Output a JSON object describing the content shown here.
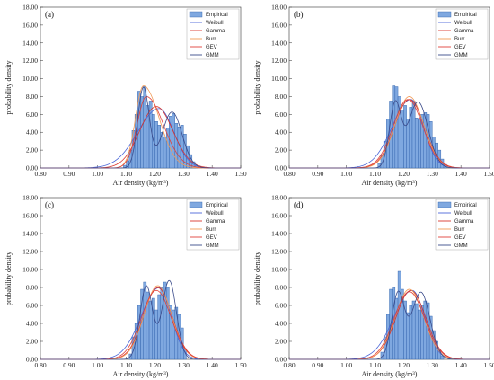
{
  "legend_entries": [
    "Empirical",
    "Weibull",
    "Gamma",
    "Burr",
    "GEV",
    "GMM"
  ],
  "colors": {
    "Empirical_fill": "#7fa8e0",
    "Empirical_edge": "#2a5ca8",
    "Weibull": "#4a66d8",
    "Gamma": "#d9342b",
    "Burr": "#f29a55",
    "GEV": "#e0403a",
    "GMM": "#3a4a8a"
  },
  "chart_data": [
    {
      "type": "bar",
      "panel_label": "(a)",
      "xlabel": "Air density  (kg/m³)",
      "ylabel": "probability density",
      "xlim": [
        0.8,
        1.5
      ],
      "ylim": [
        0,
        18
      ],
      "xticks": [
        "0.80",
        "0.90",
        "1.00",
        "1.10",
        "1.20",
        "1.30",
        "1.40",
        "1.50"
      ],
      "yticks": [
        "0.00",
        "2.00",
        "4.00",
        "6.00",
        "8.00",
        "10.00",
        "12.00",
        "14.00",
        "16.00",
        "18.00"
      ],
      "bin_width": 0.01,
      "bin_starts": [
        1.09,
        1.1,
        1.11,
        1.12,
        1.13,
        1.14,
        1.15,
        1.16,
        1.17,
        1.18,
        1.19,
        1.2,
        1.21,
        1.22,
        1.23,
        1.24,
        1.25,
        1.26,
        1.27,
        1.28,
        1.29,
        1.3,
        1.31,
        1.32,
        1.33,
        1.34
      ],
      "values": [
        0.3,
        0.8,
        2.0,
        4.2,
        6.0,
        8.6,
        8.0,
        9.1,
        7.0,
        7.5,
        6.0,
        5.2,
        4.8,
        4.0,
        3.5,
        4.5,
        5.8,
        6.1,
        5.0,
        4.6,
        4.8,
        3.8,
        2.5,
        1.5,
        0.7,
        0.3
      ],
      "fits": [
        {
          "name": "Weibull",
          "type": "weibull",
          "mean": 1.215,
          "sd": 0.06,
          "shape": -0.5
        },
        {
          "name": "Gamma",
          "type": "normal",
          "mean": 1.205,
          "sd": 0.058
        },
        {
          "name": "Burr",
          "type": "skewed",
          "peak": 1.16,
          "sdL": 0.028,
          "sdR": 0.055,
          "height": 9.2
        },
        {
          "name": "GEV",
          "type": "skewed",
          "peak": 1.17,
          "sdL": 0.032,
          "sdR": 0.06,
          "height": 8.0
        },
        {
          "name": "GMM",
          "type": "mixture",
          "components": [
            [
              0.45,
              1.16,
              0.02
            ],
            [
              0.55,
              1.26,
              0.035
            ]
          ]
        }
      ]
    },
    {
      "type": "bar",
      "panel_label": "(b)",
      "xlabel": "Air density  (kg/m³)",
      "ylabel": "probability density",
      "xlim": [
        0.8,
        1.5
      ],
      "ylim": [
        0,
        18
      ],
      "xticks": [
        "0.80",
        "0.90",
        "1.00",
        "1.10",
        "1.20",
        "1.30",
        "1.40",
        "1.50"
      ],
      "yticks": [
        "0.00",
        "2.00",
        "4.00",
        "6.00",
        "8.00",
        "10.00",
        "12.00",
        "14.00",
        "16.00",
        "18.00"
      ],
      "bin_width": 0.01,
      "bin_starts": [
        1.11,
        1.12,
        1.13,
        1.14,
        1.15,
        1.16,
        1.17,
        1.18,
        1.19,
        1.2,
        1.21,
        1.22,
        1.23,
        1.24,
        1.25,
        1.26,
        1.27,
        1.28,
        1.29,
        1.3,
        1.31,
        1.32,
        1.33,
        1.34
      ],
      "values": [
        0.5,
        1.5,
        3.0,
        5.5,
        7.5,
        9.2,
        9.1,
        8.0,
        6.5,
        7.0,
        5.5,
        6.8,
        7.5,
        5.6,
        5.5,
        6.0,
        6.2,
        6.0,
        5.2,
        3.5,
        2.8,
        2.0,
        1.0,
        0.4
      ],
      "fits": [
        {
          "name": "Weibull",
          "type": "weibull",
          "mean": 1.225,
          "sd": 0.052,
          "shape": -0.5
        },
        {
          "name": "Gamma",
          "type": "normal",
          "mean": 1.22,
          "sd": 0.052
        },
        {
          "name": "Burr",
          "type": "normal",
          "mean": 1.22,
          "sd": 0.05,
          "height": 8.0
        },
        {
          "name": "GEV",
          "type": "normal",
          "mean": 1.215,
          "sd": 0.052
        },
        {
          "name": "GMM",
          "type": "mixture",
          "components": [
            [
              0.35,
              1.17,
              0.02
            ],
            [
              0.65,
              1.25,
              0.035
            ]
          ]
        }
      ]
    },
    {
      "type": "bar",
      "panel_label": "(c)",
      "xlabel": "Air density  (kg/m³)",
      "ylabel": "probability density",
      "xlim": [
        0.8,
        1.5
      ],
      "ylim": [
        0,
        18
      ],
      "xticks": [
        "0.80",
        "0.90",
        "1.00",
        "1.10",
        "1.20",
        "1.30",
        "1.40",
        "1.50"
      ],
      "yticks": [
        "0.00",
        "2.00",
        "4.00",
        "6.00",
        "8.00",
        "10.00",
        "12.00",
        "14.00",
        "16.00",
        "18.00"
      ],
      "bin_width": 0.01,
      "bin_starts": [
        1.11,
        1.12,
        1.13,
        1.14,
        1.15,
        1.16,
        1.17,
        1.18,
        1.19,
        1.2,
        1.21,
        1.22,
        1.23,
        1.24,
        1.25,
        1.26,
        1.27,
        1.28,
        1.29,
        1.3
      ],
      "values": [
        0.6,
        2.5,
        4.0,
        6.0,
        7.8,
        8.6,
        7.5,
        6.5,
        6.8,
        5.5,
        7.2,
        8.0,
        8.6,
        8.0,
        6.0,
        5.5,
        5.8,
        5.0,
        3.5,
        1.2
      ],
      "fits": [
        {
          "name": "Weibull",
          "type": "weibull",
          "mean": 1.215,
          "sd": 0.05,
          "shape": -0.5
        },
        {
          "name": "Gamma",
          "type": "normal",
          "mean": 1.21,
          "sd": 0.05
        },
        {
          "name": "Burr",
          "type": "normal",
          "mean": 1.21,
          "sd": 0.048,
          "height": 8.2
        },
        {
          "name": "GEV",
          "type": "normal",
          "mean": 1.205,
          "sd": 0.052
        },
        {
          "name": "GMM",
          "type": "mixture",
          "components": [
            [
              0.45,
              1.17,
              0.022
            ],
            [
              0.55,
              1.25,
              0.025
            ]
          ]
        }
      ]
    },
    {
      "type": "bar",
      "panel_label": "(d)",
      "xlabel": "Air density  (kg/m³)",
      "ylabel": "probability density",
      "xlim": [
        0.8,
        1.5
      ],
      "ylim": [
        0,
        18
      ],
      "xticks": [
        "0.80",
        "0.90",
        "1.00",
        "1.10",
        "1.20",
        "1.30",
        "1.40",
        "1.50"
      ],
      "yticks": [
        "0.00",
        "2.00",
        "4.00",
        "6.00",
        "8.00",
        "10.00",
        "12.00",
        "14.00",
        "16.00",
        "18.00"
      ],
      "bin_width": 0.01,
      "bin_starts": [
        1.12,
        1.13,
        1.14,
        1.15,
        1.16,
        1.17,
        1.18,
        1.19,
        1.2,
        1.21,
        1.22,
        1.23,
        1.24,
        1.25,
        1.26,
        1.27,
        1.28,
        1.29,
        1.3,
        1.31,
        1.32,
        1.33
      ],
      "values": [
        0.8,
        2.5,
        5.0,
        7.8,
        8.0,
        6.8,
        9.8,
        7.8,
        6.5,
        5.2,
        6.0,
        6.5,
        6.2,
        5.5,
        6.0,
        6.5,
        6.3,
        4.8,
        3.2,
        2.0,
        1.0,
        0.4
      ],
      "fits": [
        {
          "name": "Weibull",
          "type": "weibull",
          "mean": 1.23,
          "sd": 0.052,
          "shape": -0.5
        },
        {
          "name": "Gamma",
          "type": "normal",
          "mean": 1.225,
          "sd": 0.052
        },
        {
          "name": "Burr",
          "type": "normal",
          "mean": 1.22,
          "sd": 0.05,
          "height": 7.8
        },
        {
          "name": "GEV",
          "type": "normal",
          "mean": 1.22,
          "sd": 0.053
        },
        {
          "name": "GMM",
          "type": "mixture",
          "components": [
            [
              0.4,
              1.18,
              0.022
            ],
            [
              0.6,
              1.26,
              0.032
            ]
          ]
        }
      ]
    }
  ]
}
